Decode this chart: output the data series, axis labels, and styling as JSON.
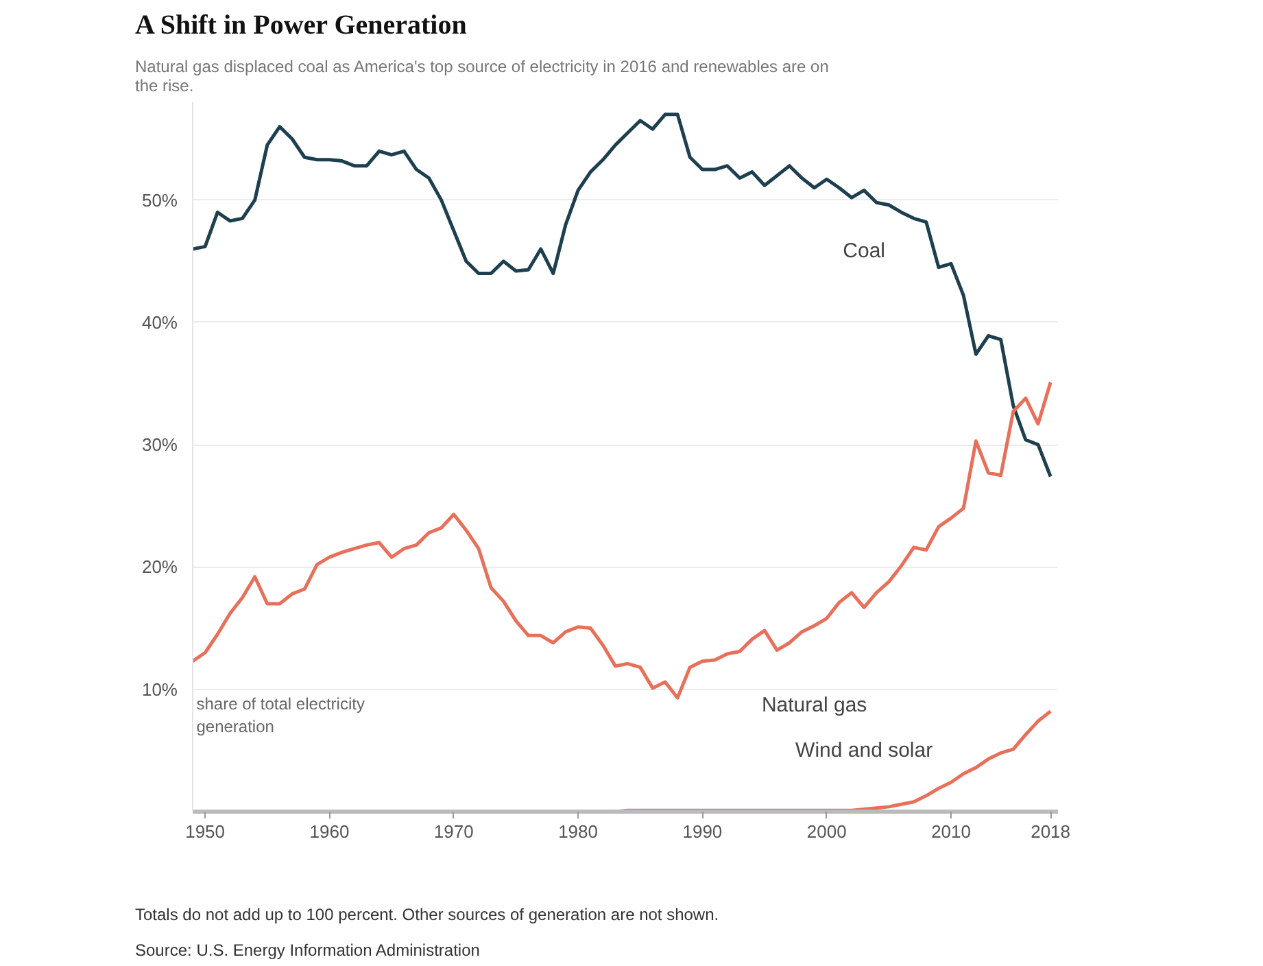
{
  "chart_data": {
    "type": "line",
    "title": "A Shift in Power Generation",
    "subtitle": "Natural gas displaced coal as America's top source of electricity in 2016 and renewables are on the rise.",
    "x": [
      1949,
      1950,
      1951,
      1952,
      1953,
      1954,
      1955,
      1956,
      1957,
      1958,
      1959,
      1960,
      1961,
      1962,
      1963,
      1964,
      1965,
      1966,
      1967,
      1968,
      1969,
      1970,
      1971,
      1972,
      1973,
      1974,
      1975,
      1976,
      1977,
      1978,
      1979,
      1980,
      1981,
      1982,
      1983,
      1984,
      1985,
      1986,
      1987,
      1988,
      1989,
      1990,
      1991,
      1992,
      1993,
      1994,
      1995,
      1996,
      1997,
      1998,
      1999,
      2000,
      2001,
      2002,
      2003,
      2004,
      2005,
      2006,
      2007,
      2008,
      2009,
      2010,
      2011,
      2012,
      2013,
      2014,
      2015,
      2016,
      2017,
      2018
    ],
    "series": [
      {
        "name": "Coal",
        "color": "#1d3f4f",
        "values": [
          46,
          46.2,
          49,
          48.3,
          48.5,
          50,
          54.5,
          56,
          55,
          53.5,
          53.3,
          53.3,
          53.2,
          52.8,
          52.8,
          54,
          53.7,
          54,
          52.5,
          51.8,
          50,
          47.5,
          45,
          44,
          44,
          45,
          44.2,
          44.3,
          46,
          44,
          48,
          50.8,
          52.3,
          53.3,
          54.5,
          55.5,
          56.5,
          55.8,
          57,
          57,
          53.5,
          52.5,
          52.5,
          52.8,
          51.8,
          52.3,
          51.2,
          52,
          52.8,
          51.8,
          51,
          51.7,
          51,
          50.2,
          50.8,
          49.8,
          49.6,
          49,
          48.5,
          48.2,
          44.5,
          44.8,
          42.2,
          37.4,
          38.9,
          38.6,
          33.2,
          30.4,
          30,
          27.4
        ]
      },
      {
        "name": "Natural gas",
        "color": "#e8705a",
        "values": [
          12.3,
          13,
          14.5,
          16.2,
          17.5,
          19.2,
          17,
          17,
          17.8,
          18.2,
          20.2,
          20.8,
          21.2,
          21.5,
          21.8,
          22,
          20.8,
          21.5,
          21.8,
          22.8,
          23.2,
          24.3,
          23,
          21.5,
          18.3,
          17.2,
          15.6,
          14.4,
          14.4,
          13.8,
          14.7,
          15.1,
          15,
          13.6,
          11.9,
          12.1,
          11.8,
          10.1,
          10.6,
          9.3,
          11.8,
          12.3,
          12.4,
          12.9,
          13.1,
          14.1,
          14.8,
          13.2,
          13.8,
          14.7,
          15.2,
          15.8,
          17.1,
          17.9,
          16.7,
          17.9,
          18.8,
          20.1,
          21.6,
          21.4,
          23.3,
          24,
          24.8,
          30.3,
          27.7,
          27.5,
          32.7,
          33.8,
          31.7,
          35.1
        ]
      },
      {
        "name": "Wind and solar",
        "color": "#e8705a",
        "values": [
          null,
          null,
          null,
          null,
          null,
          null,
          null,
          null,
          null,
          null,
          null,
          null,
          null,
          null,
          null,
          null,
          null,
          null,
          null,
          null,
          null,
          null,
          null,
          null,
          null,
          null,
          null,
          null,
          null,
          null,
          null,
          null,
          null,
          null,
          0,
          0.1,
          0.1,
          0.1,
          0.1,
          0.1,
          0.1,
          0.1,
          0.1,
          0.1,
          0.1,
          0.1,
          0.1,
          0.1,
          0.1,
          0.1,
          0.1,
          0.1,
          0.1,
          0.1,
          0.2,
          0.3,
          0.4,
          0.6,
          0.8,
          1.3,
          1.9,
          2.4,
          3.1,
          3.6,
          4.3,
          4.8,
          5.1,
          6.3,
          7.4,
          8.2
        ]
      }
    ],
    "xlim": [
      1949,
      2018.6
    ],
    "xticks": [
      1950,
      1960,
      1970,
      1980,
      1990,
      2000,
      2010,
      2018
    ],
    "ylim": [
      0,
      58
    ],
    "yticks": [
      {
        "value": 10,
        "label": "10%"
      },
      {
        "value": 20,
        "label": "20%"
      },
      {
        "value": 30,
        "label": "30%"
      },
      {
        "value": 40,
        "label": "40%"
      },
      {
        "value": 50,
        "label": "50%"
      }
    ],
    "grid": "y",
    "annotations": [
      "share of total electricity generation",
      "Totals do not add up to 100 percent. Other sources of generation are not shown.",
      "Source: U.S. Energy Information Administration"
    ]
  }
}
